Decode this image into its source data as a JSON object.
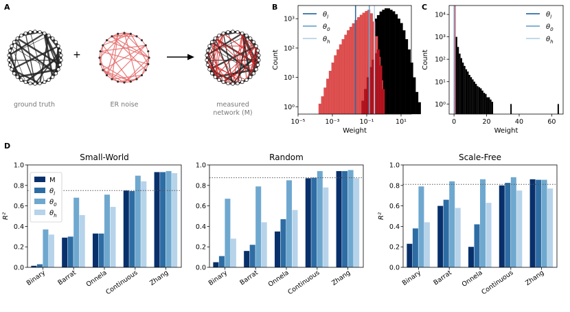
{
  "panel_labels": {
    "a": "A",
    "b": "B",
    "c": "C",
    "d": "D"
  },
  "panel_a": {
    "ground_truth": "ground truth",
    "er_noise": "ER noise",
    "measured_line1": "measured",
    "measured_line2": "network (M)",
    "plus": "+",
    "colors": {
      "ground": "#222222",
      "noise": "#e56b6b",
      "measured_red": "#d62828"
    }
  },
  "colors": {
    "M": "#08306b",
    "theta_l": "#2e6da4",
    "theta_0": "#6fa8cf",
    "theta_h": "#b6d3ea",
    "red_hist": "#e05050",
    "dark_red_hist": "#b3141f",
    "black_hist": "#000000"
  },
  "chart_data": [
    {
      "id": "B",
      "type": "histogram",
      "xlabel": "Weight",
      "ylabel": "Count",
      "xscale": "log",
      "yscale": "log",
      "xlim_exp": [
        -5,
        1.6
      ],
      "ylim_exp": [
        -0.25,
        3.45
      ],
      "x_tick_labels": [
        "10⁻⁵",
        "10⁻³",
        "10⁻¹",
        "10¹"
      ],
      "x_tick_exp": [
        -5,
        -3,
        -1,
        1
      ],
      "y_tick_labels": [
        "10⁰",
        "10¹",
        "10²",
        "10³"
      ],
      "y_tick_exp": [
        0,
        1,
        2,
        3
      ],
      "legend": [
        {
          "label": "θl",
          "color": "#2e6da4"
        },
        {
          "label": "θ0",
          "color": "#6fa8cf"
        },
        {
          "label": "θh",
          "color": "#b6d3ea"
        }
      ],
      "vlines_exp": [
        {
          "name": "theta_l",
          "x": -1.65
        },
        {
          "name": "theta_0",
          "x": -0.85
        },
        {
          "name": "theta_h",
          "x": -0.55
        }
      ],
      "hist_red": {
        "bin_start_exp": -3.8,
        "bin_width_exp": 0.15,
        "log_counts": [
          0.1,
          0.35,
          0.65,
          0.95,
          1.22,
          1.5,
          1.75,
          1.95,
          2.12,
          2.3,
          2.45,
          2.6,
          2.72,
          2.84,
          2.95,
          3.05,
          3.13,
          3.2,
          3.26,
          3.3,
          3.18,
          2.9,
          2.4,
          1.7,
          0.9
        ]
      },
      "hist_darkred": {
        "bin_start_exp": -1.3,
        "bin_width_exp": 0.15,
        "log_counts": [
          0.2,
          0.6,
          1.0,
          1.35,
          1.6,
          1.82,
          1.95,
          1.4,
          0.6
        ]
      },
      "hist_black": {
        "bin_start_exp": -1.3,
        "bin_width_exp": 0.15,
        "log_counts": [
          0.3,
          0.9,
          1.6,
          2.2,
          2.7,
          3.0,
          3.12,
          3.24,
          3.3,
          3.35,
          3.35,
          3.3,
          3.25,
          3.15,
          3.0,
          2.85,
          2.6,
          2.3,
          1.95,
          1.5,
          1.0,
          0.5,
          0.15
        ]
      }
    },
    {
      "id": "C",
      "type": "histogram",
      "xlabel": "Weight",
      "ylabel": "Count",
      "yscale": "log",
      "xlim": [
        -3,
        67
      ],
      "ylim_exp": [
        -0.45,
        4.4
      ],
      "x_ticks": [
        0,
        20,
        40,
        60
      ],
      "x_tick_labels": [
        "0",
        "20",
        "40",
        "60"
      ],
      "y_tick_labels": [
        "10⁰",
        "10¹",
        "10²",
        "10³",
        "10⁴"
      ],
      "y_tick_exp": [
        0,
        1,
        2,
        3,
        4
      ],
      "legend": [
        {
          "label": "θl",
          "color": "#2e6da4"
        },
        {
          "label": "θ0",
          "color": "#6fa8cf"
        },
        {
          "label": "θh",
          "color": "#b6d3ea"
        }
      ],
      "vlines": [
        {
          "name": "theta_l",
          "x": 0.1
        },
        {
          "name": "theta_0",
          "x": 0.35
        },
        {
          "name": "theta_h",
          "x": 0.6
        },
        {
          "name": "red",
          "x": 0.8
        }
      ],
      "hist": {
        "bin_start": 0,
        "bin_width": 1.0,
        "log_counts": [
          4.2,
          3.0,
          2.55,
          2.25,
          2.05,
          1.85,
          1.7,
          1.55,
          1.45,
          1.3,
          1.2,
          1.1,
          1.0,
          0.9,
          0.8,
          0.75,
          0.7,
          0.6,
          0.5,
          0.45,
          0.3,
          0.3,
          0.2,
          0.1
        ]
      },
      "outliers": [
        {
          "x": 35,
          "log_count": 0.0
        },
        {
          "x": 64,
          "log_count": 0.0
        }
      ]
    },
    {
      "id": "D1",
      "type": "bar",
      "title": "Small-World",
      "ylabel": "R²",
      "ylim": [
        0,
        1.0
      ],
      "y_ticks": [
        0.0,
        0.2,
        0.4,
        0.6,
        0.8,
        1.0
      ],
      "y_tick_labels": [
        "0.0",
        "0.2",
        "0.4",
        "0.6",
        "0.8",
        "1.0"
      ],
      "reference_line": 0.75,
      "categories": [
        "Binary",
        "Barrat",
        "Onnela",
        "Continuous",
        "Zhang"
      ],
      "series": [
        {
          "name": "M",
          "values": [
            0.015,
            0.29,
            0.33,
            0.75,
            0.93
          ]
        },
        {
          "name": "θl",
          "values": [
            0.03,
            0.3,
            0.33,
            0.745,
            0.93
          ]
        },
        {
          "name": "θ0",
          "values": [
            0.37,
            0.68,
            0.71,
            0.895,
            0.94
          ]
        },
        {
          "name": "θh",
          "values": [
            0.32,
            0.51,
            0.59,
            0.84,
            0.92
          ]
        }
      ],
      "legend": [
        "M",
        "θl",
        "θ0",
        "θh"
      ]
    },
    {
      "id": "D2",
      "type": "bar",
      "title": "Random",
      "ylim": [
        0,
        1.0
      ],
      "y_ticks": [
        0.0,
        0.2,
        0.4,
        0.6,
        0.8,
        1.0
      ],
      "y_tick_labels": [
        "0.0",
        "0.2",
        "0.4",
        "0.6",
        "0.8",
        "1.0"
      ],
      "reference_line": 0.875,
      "categories": [
        "Binary",
        "Barrat",
        "Onnela",
        "Continuous",
        "Zhang"
      ],
      "series": [
        {
          "name": "M",
          "values": [
            0.05,
            0.16,
            0.35,
            0.87,
            0.94
          ]
        },
        {
          "name": "θl",
          "values": [
            0.11,
            0.22,
            0.47,
            0.875,
            0.94
          ]
        },
        {
          "name": "θ0",
          "values": [
            0.67,
            0.79,
            0.85,
            0.94,
            0.95
          ]
        },
        {
          "name": "θh",
          "values": [
            0.28,
            0.44,
            0.56,
            0.78,
            0.87
          ]
        }
      ]
    },
    {
      "id": "D3",
      "type": "bar",
      "title": "Scale-Free",
      "ylabel": "R²",
      "ylim": [
        0,
        1.0
      ],
      "y_ticks": [
        0.0,
        0.2,
        0.4,
        0.6,
        0.8,
        1.0
      ],
      "y_tick_labels": [
        "0.0",
        "0.2",
        "0.4",
        "0.6",
        "0.8",
        "1.0"
      ],
      "reference_line": 0.81,
      "categories": [
        "Binary",
        "Barrat",
        "Onnela",
        "Continuous",
        "Zhang"
      ],
      "series": [
        {
          "name": "M",
          "values": [
            0.23,
            0.6,
            0.2,
            0.8,
            0.86
          ]
        },
        {
          "name": "θl",
          "values": [
            0.38,
            0.66,
            0.42,
            0.825,
            0.855
          ]
        },
        {
          "name": "θ0",
          "values": [
            0.79,
            0.84,
            0.86,
            0.88,
            0.855
          ]
        },
        {
          "name": "θh",
          "values": [
            0.44,
            0.58,
            0.63,
            0.75,
            0.77
          ]
        }
      ]
    }
  ]
}
